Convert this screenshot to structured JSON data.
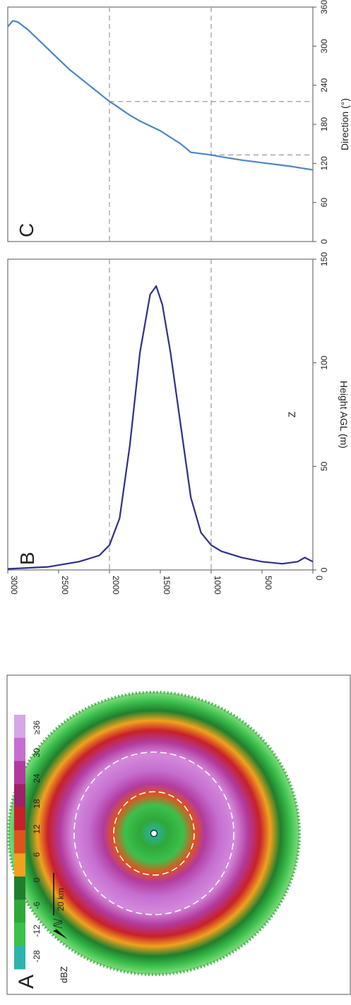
{
  "panels": {
    "a": "A",
    "b": "B",
    "c": "C"
  },
  "radar": {
    "legend_ticks": [
      "≥36",
      "30",
      "24",
      "18",
      "12",
      "6",
      "0",
      "-6",
      "-12",
      "-28"
    ],
    "legend_unit": "dBZ",
    "legend_colors": [
      "#d7a6e6",
      "#c56fd0",
      "#b23a9e",
      "#a0206a",
      "#c8202a",
      "#e0541c",
      "#f0a21e",
      "#1f7f2d",
      "#2fa83a",
      "#3cc04c",
      "#2bb4ae"
    ],
    "north_symbol": "ℕ",
    "scale_label": "20 km"
  },
  "chart_data": [
    {
      "type": "line",
      "panel": "B",
      "xlabel": "Z",
      "ylabel": "Height AGL (m)",
      "xlim": [
        0,
        150
      ],
      "ylim": [
        0,
        3000
      ],
      "x_ticks": [
        "0",
        "50",
        "100",
        "150"
      ],
      "y_ticks": [
        "0",
        "500",
        "1000",
        "1500",
        "2000",
        "2500",
        "3000"
      ],
      "reference_lines_y": [
        1000,
        2000
      ],
      "line_color": "#2e2f8c",
      "points": [
        {
          "h": 0,
          "z": 4
        },
        {
          "h": 80,
          "z": 6
        },
        {
          "h": 150,
          "z": 4
        },
        {
          "h": 300,
          "z": 3
        },
        {
          "h": 500,
          "z": 4
        },
        {
          "h": 700,
          "z": 6
        },
        {
          "h": 900,
          "z": 9
        },
        {
          "h": 1000,
          "z": 12
        },
        {
          "h": 1100,
          "z": 18
        },
        {
          "h": 1200,
          "z": 35
        },
        {
          "h": 1300,
          "z": 70
        },
        {
          "h": 1400,
          "z": 105
        },
        {
          "h": 1480,
          "z": 128
        },
        {
          "h": 1540,
          "z": 137
        },
        {
          "h": 1600,
          "z": 133
        },
        {
          "h": 1700,
          "z": 105
        },
        {
          "h": 1800,
          "z": 60
        },
        {
          "h": 1900,
          "z": 25
        },
        {
          "h": 2000,
          "z": 12
        },
        {
          "h": 2100,
          "z": 7
        },
        {
          "h": 2300,
          "z": 4
        },
        {
          "h": 2600,
          "z": 1.5
        },
        {
          "h": 3000,
          "z": 0.5
        }
      ]
    },
    {
      "type": "line",
      "panel": "C",
      "xlabel": "Direction (°)",
      "ylabel": "",
      "xlim": [
        0,
        360
      ],
      "ylim": [
        0,
        3000
      ],
      "x_ticks": [
        "0",
        "60",
        "120",
        "180",
        "240",
        "300",
        "360"
      ],
      "reference_lines_y": [
        1000,
        2000
      ],
      "reference_lines_x": [
        133,
        215
      ],
      "line_color": "#4a86c8",
      "points": [
        {
          "h": 0,
          "dir": 110
        },
        {
          "h": 200,
          "dir": 115
        },
        {
          "h": 450,
          "dir": 120
        },
        {
          "h": 700,
          "dir": 125
        },
        {
          "h": 900,
          "dir": 130
        },
        {
          "h": 1000,
          "dir": 133
        },
        {
          "h": 1200,
          "dir": 137
        },
        {
          "h": 1300,
          "dir": 150
        },
        {
          "h": 1500,
          "dir": 170
        },
        {
          "h": 1700,
          "dir": 185
        },
        {
          "h": 1800,
          "dir": 194
        },
        {
          "h": 1950,
          "dir": 210
        },
        {
          "h": 2000,
          "dir": 215
        },
        {
          "h": 2200,
          "dir": 240
        },
        {
          "h": 2400,
          "dir": 265
        },
        {
          "h": 2600,
          "dir": 295
        },
        {
          "h": 2800,
          "dir": 325
        },
        {
          "h": 2900,
          "dir": 337
        },
        {
          "h": 2950,
          "dir": 339
        },
        {
          "h": 3000,
          "dir": 330
        }
      ]
    }
  ]
}
